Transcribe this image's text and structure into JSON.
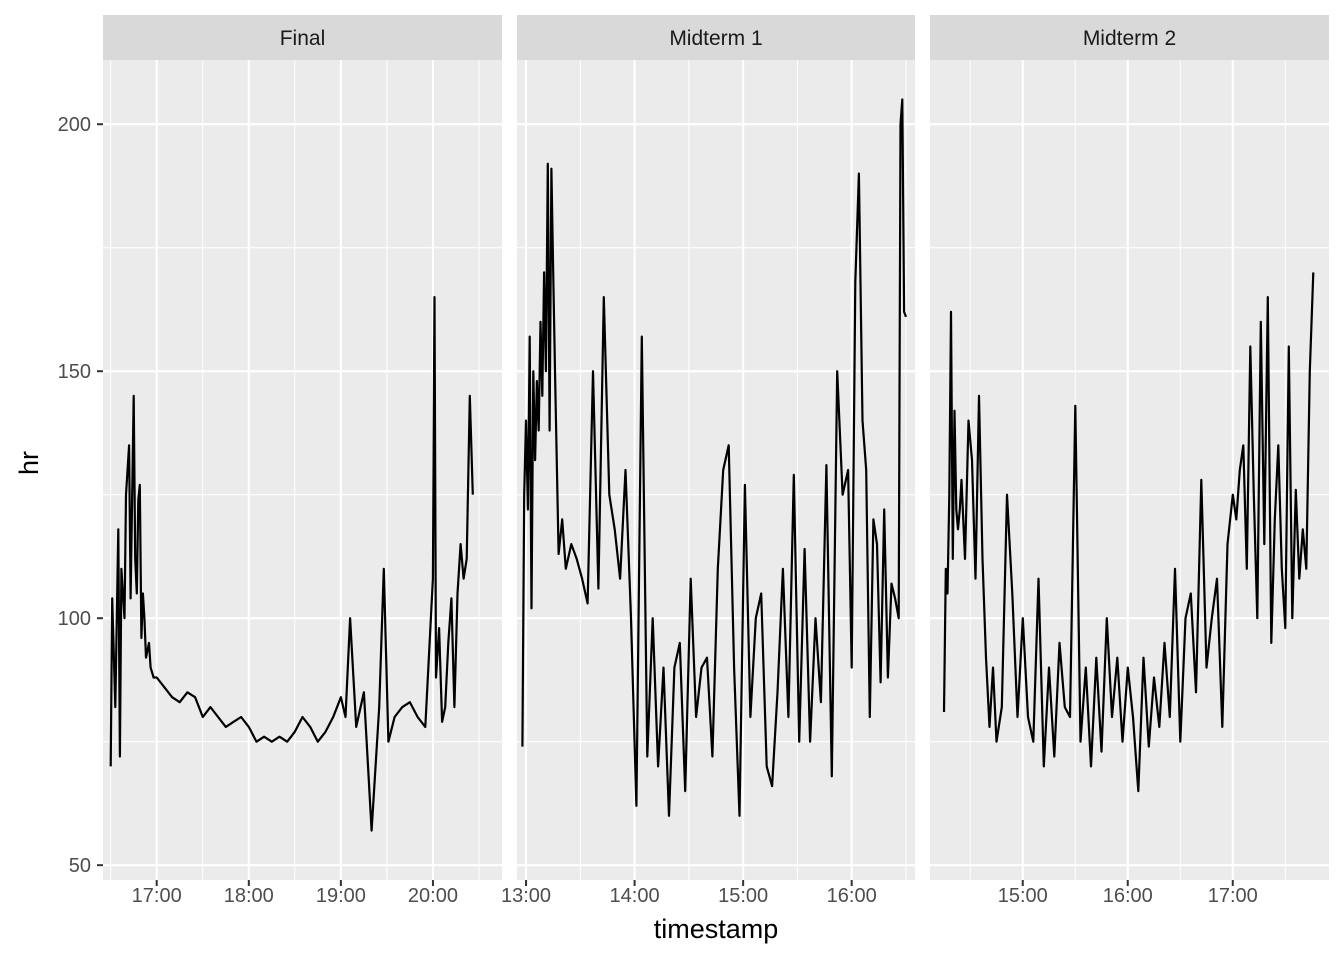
{
  "chart_data": {
    "type": "line",
    "facet_layout": "1x3",
    "xlabel": "timestamp",
    "ylabel": "hr",
    "ylim": [
      47,
      213
    ],
    "y_ticks": [
      50,
      100,
      150,
      200
    ],
    "y_tick_labels": [
      "50",
      "100",
      "150",
      "200"
    ],
    "grid": true,
    "line_color": "#000000",
    "panel_background": "#ebebeb",
    "strip_background": "#d9d9d9",
    "panels": [
      {
        "strip_label": "Final",
        "xlim": [
          "16:25",
          "20:45"
        ],
        "x_ticks": [
          "17:00",
          "18:00",
          "19:00",
          "20:00"
        ],
        "x": [
          "16:30",
          "16:31",
          "16:33",
          "16:35",
          "16:36",
          "16:37",
          "16:39",
          "16:40",
          "16:42",
          "16:43",
          "16:45",
          "16:46",
          "16:47",
          "16:48",
          "16:49",
          "16:50",
          "16:51",
          "16:52",
          "16:53",
          "16:55",
          "16:56",
          "16:58",
          "17:00",
          "17:05",
          "17:10",
          "17:15",
          "17:20",
          "17:25",
          "17:30",
          "17:35",
          "17:40",
          "17:45",
          "17:50",
          "17:55",
          "18:00",
          "18:05",
          "18:10",
          "18:15",
          "18:20",
          "18:25",
          "18:30",
          "18:35",
          "18:40",
          "18:45",
          "18:50",
          "18:55",
          "19:00",
          "19:03",
          "19:06",
          "19:10",
          "19:15",
          "19:20",
          "19:25",
          "19:28",
          "19:31",
          "19:35",
          "19:40",
          "19:45",
          "19:50",
          "19:55",
          "20:00",
          "20:01",
          "20:02",
          "20:04",
          "20:06",
          "20:08",
          "20:10",
          "20:12",
          "20:14",
          "20:16",
          "20:18",
          "20:20",
          "20:22",
          "20:24",
          "20:26"
        ],
        "y": [
          70,
          104,
          82,
          118,
          72,
          110,
          100,
          125,
          135,
          104,
          145,
          112,
          105,
          124,
          127,
          96,
          105,
          100,
          92,
          95,
          90,
          88,
          88,
          86,
          84,
          83,
          85,
          84,
          80,
          82,
          80,
          78,
          79,
          80,
          78,
          75,
          76,
          75,
          76,
          75,
          77,
          80,
          78,
          75,
          77,
          80,
          84,
          80,
          100,
          78,
          85,
          57,
          82,
          110,
          75,
          80,
          82,
          83,
          80,
          78,
          108,
          165,
          88,
          98,
          79,
          82,
          95,
          104,
          82,
          105,
          115,
          108,
          112,
          145,
          125
        ]
      },
      {
        "strip_label": "Midterm 1",
        "xlim": [
          "12:55",
          "16:35"
        ],
        "x_ticks": [
          "13:00",
          "14:00",
          "15:00",
          "16:00"
        ],
        "x": [
          "12:58",
          "12:59",
          "13:00",
          "13:01",
          "13:02",
          "13:03",
          "13:04",
          "13:05",
          "13:06",
          "13:07",
          "13:08",
          "13:09",
          "13:10",
          "13:11",
          "13:12",
          "13:13",
          "13:14",
          "13:15",
          "13:16",
          "13:18",
          "13:20",
          "13:22",
          "13:25",
          "13:28",
          "13:31",
          "13:34",
          "13:37",
          "13:40",
          "13:43",
          "13:46",
          "13:49",
          "13:52",
          "13:55",
          "13:58",
          "14:01",
          "14:04",
          "14:07",
          "14:10",
          "14:13",
          "14:16",
          "14:19",
          "14:22",
          "14:25",
          "14:28",
          "14:31",
          "14:34",
          "14:37",
          "14:40",
          "14:43",
          "14:46",
          "14:49",
          "14:52",
          "14:55",
          "14:58",
          "15:01",
          "15:04",
          "15:07",
          "15:10",
          "15:13",
          "15:16",
          "15:19",
          "15:22",
          "15:25",
          "15:28",
          "15:31",
          "15:34",
          "15:37",
          "15:40",
          "15:43",
          "15:46",
          "15:49",
          "15:52",
          "15:55",
          "15:58",
          "16:00",
          "16:02",
          "16:04",
          "16:06",
          "16:08",
          "16:10",
          "16:12",
          "16:14",
          "16:16",
          "16:18",
          "16:20",
          "16:22",
          "16:24",
          "16:26",
          "16:27",
          "16:28",
          "16:29",
          "16:30"
        ],
        "y": [
          74,
          125,
          140,
          122,
          157,
          102,
          150,
          132,
          148,
          138,
          160,
          145,
          170,
          150,
          192,
          138,
          191,
          170,
          150,
          113,
          120,
          110,
          115,
          112,
          108,
          103,
          150,
          106,
          165,
          125,
          118,
          108,
          130,
          100,
          62,
          157,
          72,
          100,
          70,
          90,
          60,
          90,
          95,
          65,
          108,
          80,
          90,
          92,
          72,
          110,
          130,
          135,
          90,
          60,
          127,
          80,
          100,
          105,
          70,
          66,
          85,
          110,
          80,
          129,
          75,
          114,
          75,
          100,
          83,
          131,
          68,
          150,
          125,
          130,
          90,
          168,
          190,
          140,
          130,
          80,
          120,
          115,
          87,
          122,
          88,
          107,
          104,
          100,
          200,
          205,
          162,
          161
        ]
      },
      {
        "strip_label": "Midterm 2",
        "xlim": [
          "14:07",
          "17:55"
        ],
        "x_ticks": [
          "15:00",
          "16:00",
          "17:00"
        ],
        "x": [
          "14:15",
          "14:16",
          "14:17",
          "14:18",
          "14:19",
          "14:20",
          "14:21",
          "14:22",
          "14:23",
          "14:24",
          "14:25",
          "14:27",
          "14:29",
          "14:31",
          "14:33",
          "14:35",
          "14:37",
          "14:39",
          "14:41",
          "14:43",
          "14:45",
          "14:48",
          "14:51",
          "14:54",
          "14:57",
          "15:00",
          "15:03",
          "15:06",
          "15:09",
          "15:12",
          "15:15",
          "15:18",
          "15:21",
          "15:24",
          "15:27",
          "15:30",
          "15:33",
          "15:36",
          "15:39",
          "15:42",
          "15:45",
          "15:48",
          "15:51",
          "15:54",
          "15:57",
          "16:00",
          "16:03",
          "16:06",
          "16:09",
          "16:12",
          "16:15",
          "16:18",
          "16:21",
          "16:24",
          "16:27",
          "16:30",
          "16:33",
          "16:36",
          "16:39",
          "16:42",
          "16:45",
          "16:48",
          "16:51",
          "16:54",
          "16:57",
          "17:00",
          "17:02",
          "17:04",
          "17:06",
          "17:08",
          "17:10",
          "17:12",
          "17:14",
          "17:16",
          "17:18",
          "17:20",
          "17:22",
          "17:24",
          "17:26",
          "17:28",
          "17:30",
          "17:32",
          "17:34",
          "17:36",
          "17:38",
          "17:40",
          "17:42",
          "17:44",
          "17:46"
        ],
        "y": [
          81,
          110,
          105,
          125,
          162,
          112,
          142,
          122,
          118,
          122,
          128,
          112,
          140,
          132,
          108,
          145,
          112,
          92,
          78,
          90,
          75,
          82,
          125,
          105,
          80,
          100,
          80,
          75,
          108,
          70,
          90,
          72,
          95,
          82,
          80,
          143,
          75,
          90,
          70,
          92,
          73,
          100,
          80,
          92,
          75,
          90,
          80,
          65,
          92,
          74,
          88,
          78,
          95,
          80,
          110,
          75,
          100,
          105,
          85,
          128,
          90,
          100,
          108,
          78,
          115,
          125,
          120,
          130,
          135,
          110,
          155,
          125,
          100,
          160,
          115,
          165,
          95,
          120,
          135,
          110,
          98,
          155,
          100,
          126,
          108,
          118,
          110,
          150,
          170
        ]
      }
    ]
  }
}
